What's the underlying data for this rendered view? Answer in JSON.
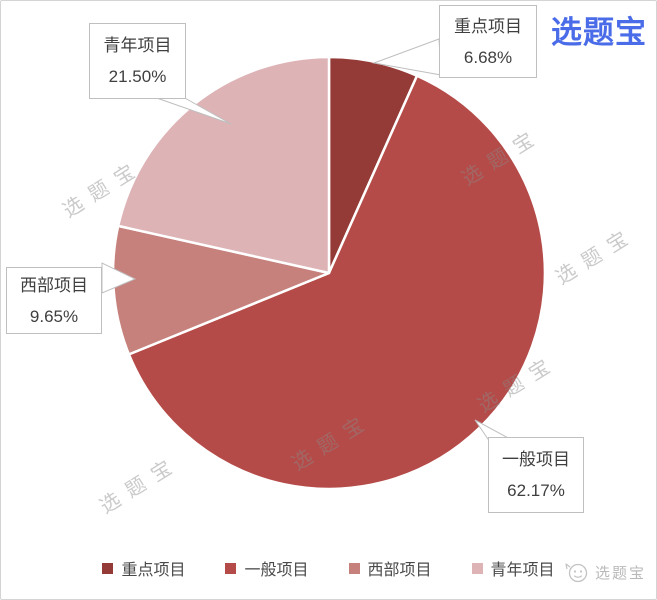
{
  "brand": {
    "logo_text": "选题宝",
    "logo_color": "#4A6CE8"
  },
  "watermark": {
    "text": "选题宝"
  },
  "footer": {
    "brand_text": "选题宝"
  },
  "chart_data": {
    "type": "pie",
    "categories": [
      "重点项目",
      "一般项目",
      "西部项目",
      "青年项目"
    ],
    "values": [
      6.68,
      62.17,
      9.65,
      21.5
    ],
    "percent_labels": [
      "6.68%",
      "62.17%",
      "9.65%",
      "21.50%"
    ],
    "colors": [
      "#953B37",
      "#B54B48",
      "#C6817D",
      "#DDB3B6"
    ],
    "start_angle_deg": 0,
    "direction": "clockwise",
    "legend_position": "bottom",
    "title": ""
  },
  "callouts": [
    {
      "label": "重点项目",
      "percent": "6.68%"
    },
    {
      "label": "一般项目",
      "percent": "62.17%"
    },
    {
      "label": "西部项目",
      "percent": "9.65%"
    },
    {
      "label": "青年项目",
      "percent": "21.50%"
    }
  ]
}
